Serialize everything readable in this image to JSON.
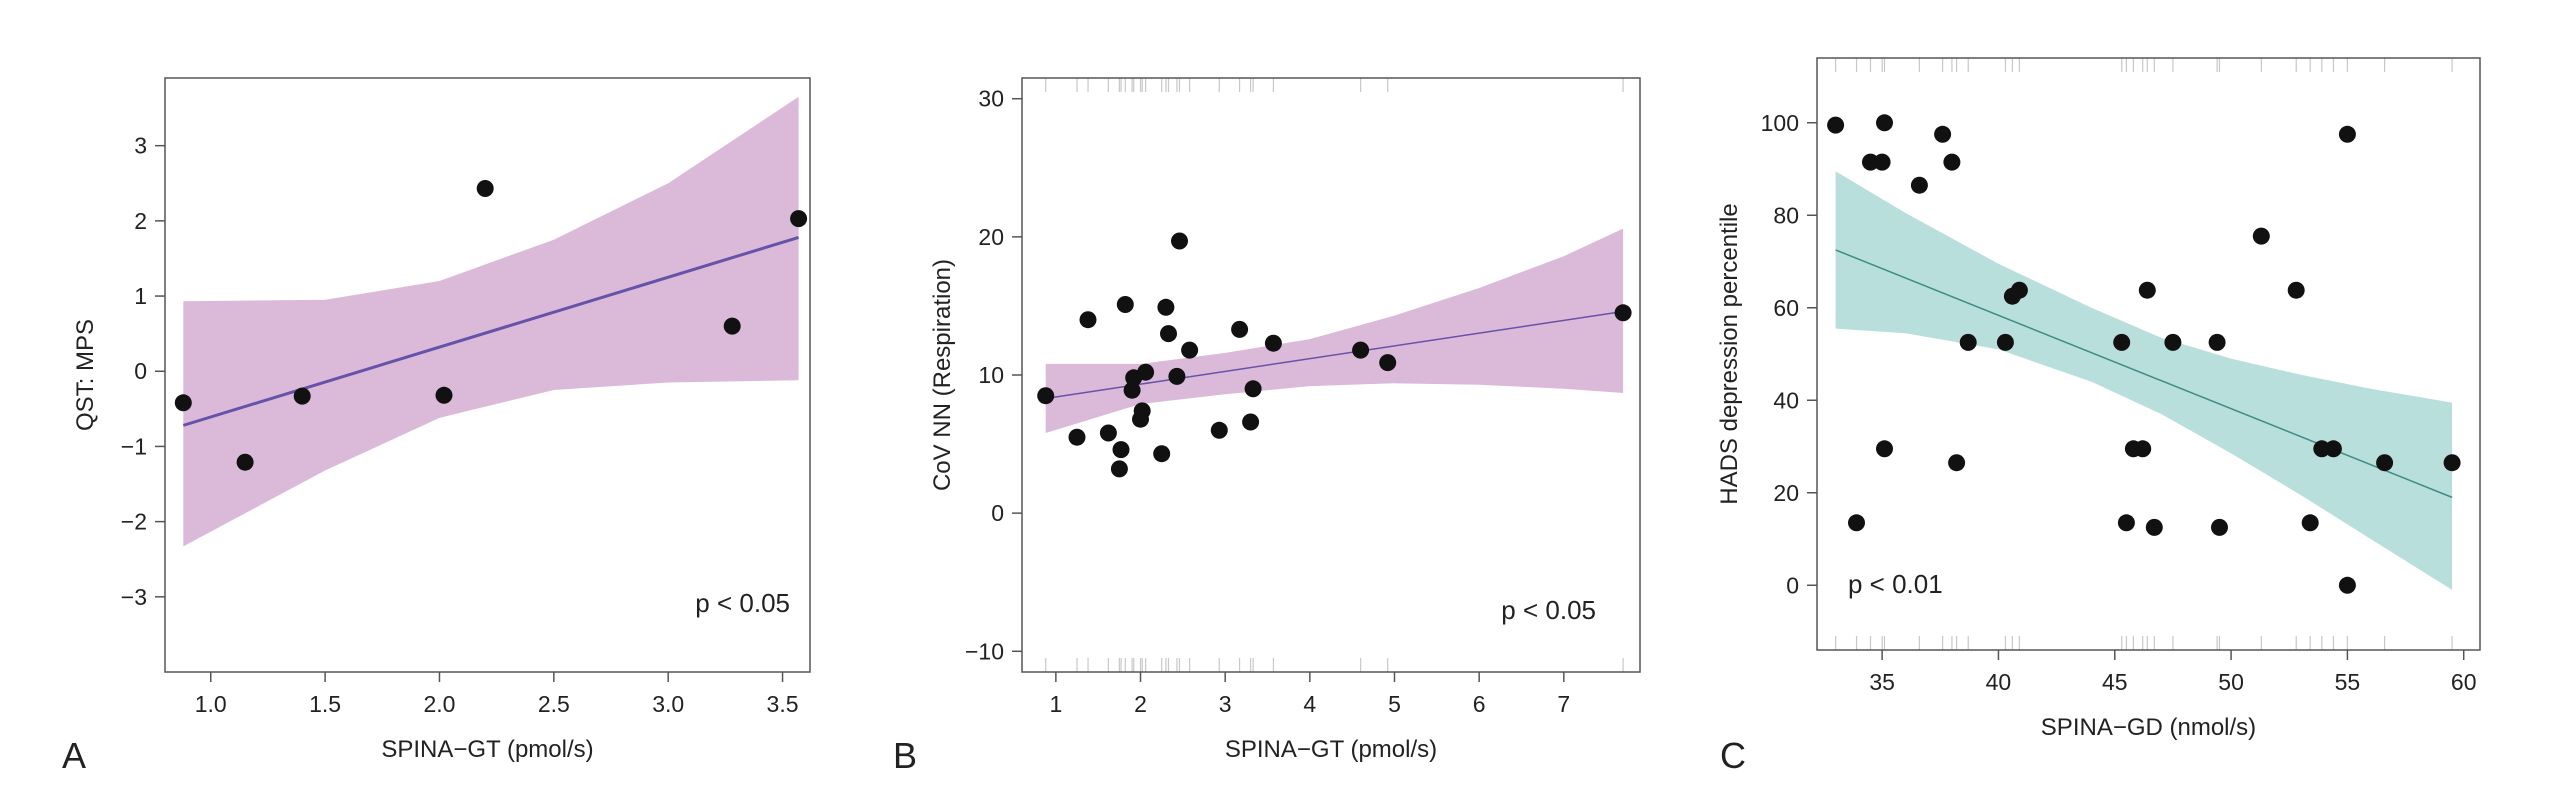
{
  "panels": [
    {
      "letter": "A",
      "pvalue": "p < 0.05",
      "chart_data": {
        "type": "scatter",
        "xlabel": "SPINA−GT (pmol/s)",
        "ylabel": "QST: MPS",
        "xlim": [
          0.8,
          3.62
        ],
        "ylim": [
          -4.0,
          3.9
        ],
        "xticks": [
          1.0,
          1.5,
          2.0,
          2.5,
          3.0,
          3.5
        ],
        "xtick_labels": [
          "1.0",
          "1.5",
          "2.0",
          "2.5",
          "3.0",
          "3.5"
        ],
        "yticks": [
          -3,
          -2,
          -1,
          0,
          1,
          2,
          3
        ],
        "ytick_labels": [
          "−3",
          "−2",
          "−1",
          "0",
          "1",
          "2",
          "3"
        ],
        "points": [
          {
            "x": 0.88,
            "y": -0.42
          },
          {
            "x": 1.15,
            "y": -1.21
          },
          {
            "x": 1.4,
            "y": -0.33
          },
          {
            "x": 2.02,
            "y": -0.32
          },
          {
            "x": 2.2,
            "y": 2.43
          },
          {
            "x": 3.28,
            "y": 0.6
          },
          {
            "x": 3.57,
            "y": 2.03
          }
        ],
        "fit_line": {
          "x": [
            0.88,
            3.57
          ],
          "y": [
            -0.72,
            1.78
          ]
        },
        "confidence_band": {
          "x": [
            0.88,
            1.5,
            2.0,
            2.5,
            3.0,
            3.57
          ],
          "upper": [
            0.93,
            0.95,
            1.2,
            1.75,
            2.5,
            3.65
          ],
          "lower": [
            -2.33,
            -1.32,
            -0.62,
            -0.25,
            -0.15,
            -0.12
          ]
        },
        "rug_x": [],
        "colors": {
          "band": "#dbbad9",
          "line": "#6652a8",
          "points": "#111111"
        }
      }
    },
    {
      "letter": "B",
      "pvalue": "p < 0.05",
      "chart_data": {
        "type": "scatter",
        "xlabel": "SPINA−GT (pmol/s)",
        "ylabel": "CoV NN (Respiration)",
        "xlim": [
          0.6,
          7.9
        ],
        "ylim": [
          -11.5,
          31.5
        ],
        "xticks": [
          1,
          2,
          3,
          4,
          5,
          6,
          7
        ],
        "xtick_labels": [
          "1",
          "2",
          "3",
          "4",
          "5",
          "6",
          "7"
        ],
        "yticks": [
          -10,
          0,
          10,
          20,
          30
        ],
        "ytick_labels": [
          "−10",
          "0",
          "10",
          "20",
          "30"
        ],
        "points": [
          {
            "x": 0.88,
            "y": 8.5
          },
          {
            "x": 1.25,
            "y": 5.5
          },
          {
            "x": 1.38,
            "y": 14.0
          },
          {
            "x": 1.62,
            "y": 5.8
          },
          {
            "x": 1.75,
            "y": 3.2
          },
          {
            "x": 1.77,
            "y": 4.6
          },
          {
            "x": 1.82,
            "y": 15.1
          },
          {
            "x": 1.9,
            "y": 8.9
          },
          {
            "x": 1.92,
            "y": 9.8
          },
          {
            "x": 2.0,
            "y": 6.8
          },
          {
            "x": 2.02,
            "y": 7.4
          },
          {
            "x": 2.06,
            "y": 10.2
          },
          {
            "x": 2.25,
            "y": 4.3
          },
          {
            "x": 2.3,
            "y": 14.9
          },
          {
            "x": 2.33,
            "y": 13.0
          },
          {
            "x": 2.43,
            "y": 9.9
          },
          {
            "x": 2.46,
            "y": 19.7
          },
          {
            "x": 2.58,
            "y": 11.8
          },
          {
            "x": 2.93,
            "y": 6.0
          },
          {
            "x": 3.17,
            "y": 13.3
          },
          {
            "x": 3.3,
            "y": 6.6
          },
          {
            "x": 3.33,
            "y": 9.0
          },
          {
            "x": 3.57,
            "y": 12.3
          },
          {
            "x": 4.6,
            "y": 11.8
          },
          {
            "x": 4.92,
            "y": 10.9
          },
          {
            "x": 7.7,
            "y": 14.5
          }
        ],
        "fit_line": {
          "x": [
            0.88,
            7.7
          ],
          "y": [
            8.3,
            14.6
          ]
        },
        "confidence_band": {
          "x": [
            0.88,
            2.0,
            3.0,
            4.0,
            5.0,
            6.0,
            7.0,
            7.7
          ],
          "upper": [
            10.8,
            10.8,
            11.6,
            12.6,
            14.3,
            16.3,
            18.6,
            20.6
          ],
          "lower": [
            5.8,
            7.9,
            8.6,
            9.2,
            9.4,
            9.3,
            9.0,
            8.7
          ]
        },
        "rug_x": [
          0.88,
          1.25,
          1.38,
          1.62,
          1.75,
          1.77,
          1.82,
          1.9,
          1.92,
          2.0,
          2.02,
          2.06,
          2.25,
          2.3,
          2.33,
          2.43,
          2.46,
          2.58,
          2.93,
          3.17,
          3.3,
          3.33,
          3.57,
          4.6,
          4.92,
          7.7
        ],
        "colors": {
          "band": "#dbbad9",
          "line": "#6652a8",
          "points": "#111111"
        }
      }
    },
    {
      "letter": "C",
      "pvalue": "p < 0.01",
      "chart_data": {
        "type": "scatter",
        "xlabel": "SPINA−GD (nmol/s)",
        "ylabel": "HADS depression percentile",
        "xlim": [
          32.2,
          60.7
        ],
        "ylim": [
          -14.0,
          114.0
        ],
        "xticks": [
          35,
          40,
          45,
          50,
          55,
          60
        ],
        "xtick_labels": [
          "35",
          "40",
          "45",
          "50",
          "55",
          "60"
        ],
        "yticks": [
          0,
          20,
          40,
          60,
          80,
          100
        ],
        "ytick_labels": [
          "0",
          "20",
          "40",
          "60",
          "80",
          "100"
        ],
        "points": [
          {
            "x": 33.0,
            "y": 99.5
          },
          {
            "x": 33.9,
            "y": 13.5
          },
          {
            "x": 34.5,
            "y": 91.5
          },
          {
            "x": 35.1,
            "y": 100.0
          },
          {
            "x": 35.0,
            "y": 91.5
          },
          {
            "x": 35.1,
            "y": 29.5
          },
          {
            "x": 36.6,
            "y": 86.5
          },
          {
            "x": 37.6,
            "y": 97.5
          },
          {
            "x": 38.0,
            "y": 91.5
          },
          {
            "x": 38.2,
            "y": 26.5
          },
          {
            "x": 38.7,
            "y": 52.5
          },
          {
            "x": 40.3,
            "y": 52.5
          },
          {
            "x": 40.6,
            "y": 62.5
          },
          {
            "x": 40.9,
            "y": 63.8
          },
          {
            "x": 45.3,
            "y": 52.5
          },
          {
            "x": 45.5,
            "y": 13.5
          },
          {
            "x": 45.8,
            "y": 29.5
          },
          {
            "x": 46.2,
            "y": 29.5
          },
          {
            "x": 46.4,
            "y": 63.8
          },
          {
            "x": 46.7,
            "y": 12.5
          },
          {
            "x": 47.5,
            "y": 52.5
          },
          {
            "x": 49.4,
            "y": 52.5
          },
          {
            "x": 49.5,
            "y": 12.5
          },
          {
            "x": 51.3,
            "y": 75.5
          },
          {
            "x": 52.8,
            "y": 63.8
          },
          {
            "x": 53.4,
            "y": 13.5
          },
          {
            "x": 53.9,
            "y": 29.5
          },
          {
            "x": 54.4,
            "y": 29.5
          },
          {
            "x": 55.0,
            "y": 97.5
          },
          {
            "x": 55.0,
            "y": 0.0
          },
          {
            "x": 56.6,
            "y": 26.5
          },
          {
            "x": 59.5,
            "y": 26.5
          }
        ],
        "fit_line": {
          "x": [
            33.0,
            59.5
          ],
          "y": [
            72.5,
            19.0
          ]
        },
        "confidence_band": {
          "x": [
            33.0,
            36.0,
            40.0,
            44.0,
            47.0,
            50.0,
            53.0,
            56.0,
            59.5
          ],
          "upper": [
            89.5,
            80.5,
            69.5,
            60.0,
            53.5,
            49.0,
            45.5,
            42.5,
            39.5
          ],
          "lower": [
            55.5,
            54.5,
            51.0,
            44.0,
            37.0,
            28.5,
            19.5,
            10.0,
            -1.0
          ]
        },
        "rug_x": [
          33.0,
          33.9,
          34.5,
          35.0,
          35.1,
          36.6,
          37.6,
          38.0,
          38.2,
          38.7,
          40.3,
          40.6,
          40.9,
          45.3,
          45.5,
          45.8,
          46.2,
          46.4,
          46.7,
          47.5,
          49.4,
          49.5,
          51.3,
          52.8,
          53.4,
          53.9,
          54.4,
          55.0,
          56.6,
          59.5
        ],
        "colors": {
          "band": "#b9dfdc",
          "line": "#3f8c86",
          "points": "#111111"
        }
      }
    }
  ]
}
